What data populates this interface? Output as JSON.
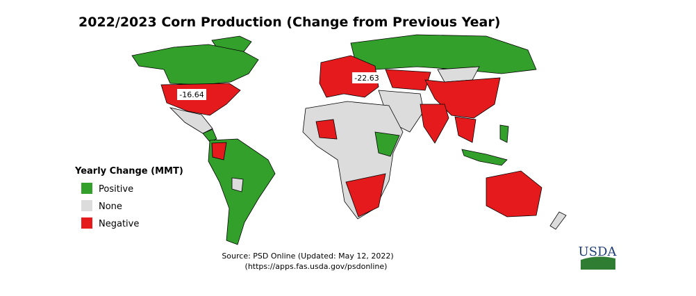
{
  "title": "2022/2023 Corn Production (Change from Previous Year)",
  "legend": {
    "title": "Yearly Change (MMT)",
    "items": [
      {
        "label": "Positive",
        "color": "#33a02c"
      },
      {
        "label": "None",
        "color": "#dcdcdc"
      },
      {
        "label": "Negative",
        "color": "#e41a1c"
      }
    ]
  },
  "annotations": [
    -16.64,
    -22.63
  ],
  "source": [
    "Source: PSD Online (Updated: May 12, 2022)",
    "(https://apps.fas.usda.gov/psdonline)"
  ],
  "logo": "USDA"
}
